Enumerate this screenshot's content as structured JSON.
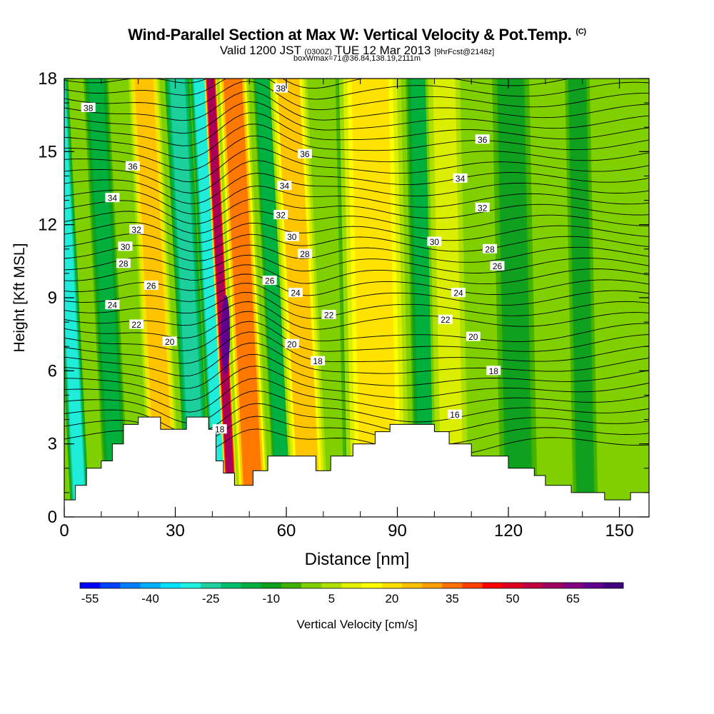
{
  "header": {
    "title": "Wind-Parallel Section at Max W: Vertical Velocity & Pot.Temp.",
    "title_mark": "(C)",
    "valid_prefix": "Valid 1200 JST",
    "valid_utc": "(0300Z)",
    "valid_date": "TUE 12 Mar 2013",
    "forecast": "[9hrFcst@2148z]",
    "box_info": "boxWmax=71@36.84,138.19,2111m"
  },
  "chart_data": {
    "type": "heatmap",
    "xlabel": "Distance [nm]",
    "ylabel": "Height [Kft MSL]",
    "xlim": [
      0,
      158
    ],
    "ylim": [
      0,
      18
    ],
    "x_ticks": [
      0,
      30,
      60,
      90,
      120,
      150
    ],
    "y_ticks": [
      0,
      3,
      6,
      9,
      12,
      15,
      18
    ],
    "colorbar": {
      "label": "Vertical Velocity [cm/s]",
      "min": -55,
      "max": 80,
      "step": 5,
      "tick_labels": [
        -55,
        -40,
        -25,
        -10,
        5,
        20,
        35,
        50,
        65
      ],
      "colors": [
        "#0000ff",
        "#0040ff",
        "#0080ff",
        "#00b0ff",
        "#00e0ff",
        "#20f0e0",
        "#20d0a0",
        "#00c070",
        "#00b040",
        "#10a020",
        "#40b000",
        "#80d000",
        "#b0e000",
        "#e0f000",
        "#ffff00",
        "#ffe000",
        "#ffc000",
        "#ffa000",
        "#ff7000",
        "#ff4000",
        "#ff0000",
        "#e00020",
        "#c00040",
        "#a00060",
        "#800080",
        "#600090",
        "#400080"
      ]
    },
    "vertical_velocity_bands": [
      {
        "x": 2,
        "w": 3,
        "value": -30
      },
      {
        "x": 12,
        "w": 4,
        "value": -12
      },
      {
        "x": 25,
        "w": 5,
        "value": 28
      },
      {
        "x": 34,
        "w": 4,
        "value": -22
      },
      {
        "x": 40,
        "w": 3,
        "value": -30
      },
      {
        "x": 43,
        "w": 2,
        "value": 60
      },
      {
        "x": 49,
        "w": 5,
        "value": 35
      },
      {
        "x": 57,
        "w": 3,
        "value": -15
      },
      {
        "x": 64,
        "w": 6,
        "value": 25
      },
      {
        "x": 78,
        "w": 4,
        "value": -8
      },
      {
        "x": 84,
        "w": 10,
        "value": 20
      },
      {
        "x": 97,
        "w": 4,
        "value": -12
      },
      {
        "x": 104,
        "w": 6,
        "value": 12
      },
      {
        "x": 122,
        "w": 6,
        "value": -10
      },
      {
        "x": 140,
        "w": 4,
        "value": -10
      }
    ],
    "wmax": 71,
    "terrain_kft": [
      [
        0,
        0.7
      ],
      [
        3,
        0.7
      ],
      [
        3,
        1.3
      ],
      [
        6,
        1.3
      ],
      [
        6,
        2.0
      ],
      [
        10,
        2.0
      ],
      [
        10,
        2.3
      ],
      [
        13,
        2.3
      ],
      [
        13,
        3.0
      ],
      [
        16,
        3.0
      ],
      [
        16,
        3.8
      ],
      [
        20,
        3.8
      ],
      [
        20,
        4.1
      ],
      [
        26,
        4.1
      ],
      [
        26,
        3.6
      ],
      [
        33,
        3.6
      ],
      [
        33,
        4.1
      ],
      [
        39,
        4.1
      ],
      [
        39,
        3.6
      ],
      [
        41,
        3.6
      ],
      [
        41,
        2.3
      ],
      [
        43,
        2.3
      ],
      [
        43,
        1.8
      ],
      [
        46,
        1.8
      ],
      [
        46,
        1.3
      ],
      [
        51,
        1.3
      ],
      [
        51,
        1.9
      ],
      [
        55,
        1.9
      ],
      [
        55,
        2.5
      ],
      [
        68,
        2.5
      ],
      [
        68,
        1.9
      ],
      [
        72,
        1.9
      ],
      [
        72,
        2.5
      ],
      [
        78,
        2.5
      ],
      [
        78,
        3.0
      ],
      [
        84,
        3.0
      ],
      [
        84,
        3.5
      ],
      [
        88,
        3.5
      ],
      [
        88,
        3.8
      ],
      [
        100,
        3.8
      ],
      [
        100,
        3.5
      ],
      [
        104,
        3.5
      ],
      [
        104,
        3.0
      ],
      [
        110,
        3.0
      ],
      [
        110,
        2.5
      ],
      [
        120,
        2.5
      ],
      [
        120,
        2.0
      ],
      [
        127,
        2.0
      ],
      [
        127,
        1.7
      ],
      [
        130,
        1.7
      ],
      [
        130,
        1.3
      ],
      [
        137,
        1.3
      ],
      [
        137,
        1.0
      ],
      [
        146,
        1.0
      ],
      [
        146,
        0.7
      ],
      [
        153,
        0.7
      ],
      [
        153,
        1.0
      ],
      [
        158,
        1.0
      ]
    ],
    "isentrope_labels": [
      {
        "value": "38",
        "x": 6.5,
        "y": 16.8
      },
      {
        "value": "38",
        "x": 58.5,
        "y": 17.6
      },
      {
        "value": "36",
        "x": 18.5,
        "y": 14.4
      },
      {
        "value": "36",
        "x": 65,
        "y": 14.9
      },
      {
        "value": "36",
        "x": 113,
        "y": 15.5
      },
      {
        "value": "34",
        "x": 13,
        "y": 13.1
      },
      {
        "value": "34",
        "x": 59.5,
        "y": 13.6
      },
      {
        "value": "34",
        "x": 107,
        "y": 13.9
      },
      {
        "value": "32",
        "x": 19.5,
        "y": 11.8
      },
      {
        "value": "32",
        "x": 58.5,
        "y": 12.4
      },
      {
        "value": "32",
        "x": 113,
        "y": 12.7
      },
      {
        "value": "30",
        "x": 16.5,
        "y": 11.1
      },
      {
        "value": "30",
        "x": 61.5,
        "y": 11.5
      },
      {
        "value": "30",
        "x": 100,
        "y": 11.3
      },
      {
        "value": "28",
        "x": 16,
        "y": 10.4
      },
      {
        "value": "28",
        "x": 65,
        "y": 10.8
      },
      {
        "value": "28",
        "x": 115,
        "y": 11.0
      },
      {
        "value": "26",
        "x": 23.5,
        "y": 9.5
      },
      {
        "value": "26",
        "x": 55.5,
        "y": 9.7
      },
      {
        "value": "26",
        "x": 117,
        "y": 10.3
      },
      {
        "value": "24",
        "x": 13,
        "y": 8.7
      },
      {
        "value": "24",
        "x": 62.5,
        "y": 9.2
      },
      {
        "value": "24",
        "x": 106.5,
        "y": 9.2
      },
      {
        "value": "22",
        "x": 19.5,
        "y": 7.9
      },
      {
        "value": "22",
        "x": 71.5,
        "y": 8.3
      },
      {
        "value": "22",
        "x": 103,
        "y": 8.1
      },
      {
        "value": "20",
        "x": 28.5,
        "y": 7.2
      },
      {
        "value": "20",
        "x": 61.5,
        "y": 7.1
      },
      {
        "value": "20",
        "x": 110.5,
        "y": 7.4
      },
      {
        "value": "18",
        "x": 68.5,
        "y": 6.4
      },
      {
        "value": "18",
        "x": 116,
        "y": 6.0
      },
      {
        "value": "18",
        "x": 42,
        "y": 3.6
      },
      {
        "value": "16",
        "x": 105.5,
        "y": 4.2
      }
    ]
  }
}
